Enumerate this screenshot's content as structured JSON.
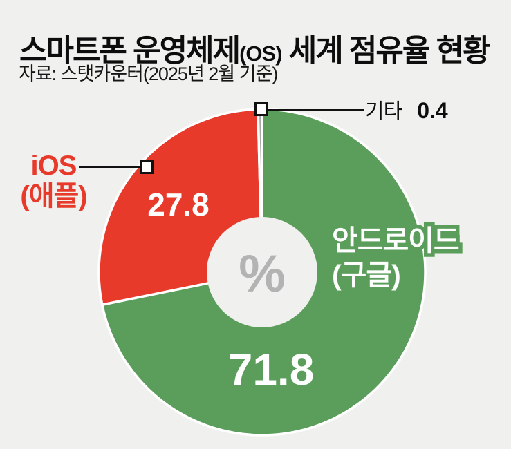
{
  "header": {
    "title_main": "스마트폰 운영체제",
    "title_paren": "(OS)",
    "title_rest": " 세계 점유율 현황",
    "source": "자료: 스탯카운터(2025년 2월 기준)"
  },
  "chart_data": {
    "type": "pie",
    "title": "스마트폰 운영체제(OS) 세계 점유율 현황",
    "source": "자료: 스탯카운터(2025년 2월 기준)",
    "unit": "%",
    "donut": true,
    "start_angle_deg": 0,
    "direction": "clockwise",
    "center_symbol": "%",
    "slices": [
      {
        "label": "안드로이드(구글)",
        "value": 71.8,
        "color": "#5b9e5b"
      },
      {
        "label": "iOS(애플)",
        "value": 27.8,
        "color": "#e83a2b"
      },
      {
        "label": "기타",
        "value": 0.4,
        "color": "#a8a8a8"
      }
    ]
  },
  "labels": {
    "android_line1": "안드로이드",
    "android_line2": "(구글)",
    "ios_line1": "iOS",
    "ios_line2": "(애플)",
    "etc_name": "기타"
  },
  "colors": {
    "background": "#f0f0ee",
    "android_green": "#5b9e5b",
    "ios_red": "#e83a2b",
    "etc_gray": "#a8a8a8",
    "percent_gray": "#b3b3b3"
  }
}
